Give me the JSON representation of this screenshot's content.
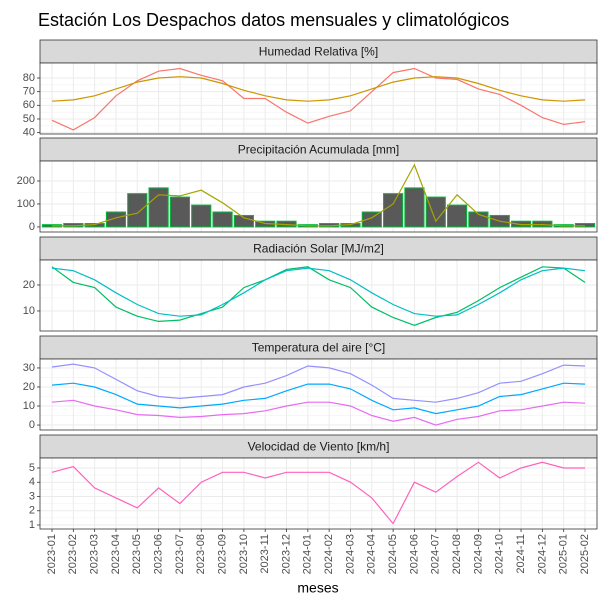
{
  "title": "Estación Los Despachos datos mensuales y climatológicos",
  "x_label": "meses",
  "categories": [
    "2023-01",
    "2023-02",
    "2023-03",
    "2023-04",
    "2023-05",
    "2023-06",
    "2023-07",
    "2023-08",
    "2023-09",
    "2023-10",
    "2023-11",
    "2023-12",
    "2024-01",
    "2024-02",
    "2024-03",
    "2024-04",
    "2024-05",
    "2024-06",
    "2024-07",
    "2024-08",
    "2024-09",
    "2024-10",
    "2024-11",
    "2024-12",
    "2025-01",
    "2025-02"
  ],
  "chart_data": [
    {
      "type": "line",
      "title": "Humedad Relativa [%]",
      "ylim": [
        39,
        91
      ],
      "yticks": [
        40,
        50,
        60,
        70,
        80
      ],
      "grid": true,
      "series": [
        {
          "color": "#F8766D",
          "values": [
            49,
            42,
            51,
            67,
            78,
            85,
            87,
            82,
            78,
            65,
            65,
            55,
            47,
            52,
            56,
            70,
            84,
            87,
            80,
            79,
            72,
            68,
            60,
            51,
            46,
            48
          ]
        },
        {
          "color": "#CD9600",
          "values": [
            63,
            64,
            67,
            72,
            77,
            80,
            81,
            80,
            76,
            71,
            67,
            64,
            63,
            64,
            67,
            72,
            77,
            80,
            81,
            80,
            76,
            71,
            67,
            64,
            63,
            64
          ]
        }
      ]
    },
    {
      "type": "bar",
      "title": "Precipitación Acumulada [mm]",
      "ylim": [
        -22,
        287
      ],
      "yticks": [
        0,
        100,
        200
      ],
      "grid": true,
      "series": [
        {
          "color": "#00BA38",
          "fill": "#595959",
          "values": [
            10,
            15,
            15,
            65,
            145,
            170,
            130,
            95,
            65,
            50,
            25,
            25,
            10,
            15,
            15,
            65,
            145,
            170,
            130,
            95,
            65,
            50,
            25,
            25,
            10,
            15
          ]
        },
        {
          "type": "line",
          "color": "#A3A500",
          "values": [
            5,
            5,
            10,
            40,
            60,
            140,
            135,
            160,
            105,
            40,
            15,
            10,
            5,
            5,
            10,
            40,
            100,
            270,
            25,
            140,
            55,
            25,
            10,
            10,
            5,
            5
          ]
        }
      ]
    },
    {
      "type": "line",
      "title": "Radiación Solar [MJ/m2]",
      "ylim": [
        2.3,
        29.6
      ],
      "yticks": [
        10,
        20
      ],
      "grid": true,
      "series": [
        {
          "color": "#00BE67",
          "values": [
            27,
            21,
            19,
            11.5,
            8,
            6,
            6.5,
            9,
            11.5,
            19,
            22,
            26,
            27,
            22,
            19,
            11.5,
            7.5,
            4.5,
            7.5,
            9.5,
            14,
            19,
            23,
            27,
            26.5,
            21
          ]
        },
        {
          "color": "#00BFC4",
          "values": [
            26.5,
            25.5,
            22,
            17,
            12.5,
            9,
            8,
            8.5,
            12.5,
            17,
            22,
            25.5,
            26.5,
            25.5,
            22,
            17,
            12.5,
            9,
            8,
            8.5,
            12.5,
            17,
            22,
            25.5,
            26.5,
            25.5
          ]
        }
      ]
    },
    {
      "type": "line",
      "title": "Temperatura del aire [°C]",
      "ylim": [
        -2.6,
        34.7
      ],
      "yticks": [
        0,
        10,
        20,
        30
      ],
      "grid": true,
      "series": [
        {
          "color": "#9590FF",
          "values": [
            30.5,
            32,
            30,
            24,
            18,
            15,
            14,
            15,
            16,
            20,
            22,
            26,
            31,
            30,
            27,
            21,
            14,
            13,
            12,
            14,
            17,
            22,
            23,
            27,
            31.5,
            31
          ]
        },
        {
          "color": "#00A9FF",
          "values": [
            21,
            22,
            20,
            16,
            11,
            10,
            9,
            10,
            11,
            13,
            14,
            18,
            21.5,
            21.5,
            19,
            13,
            8,
            9,
            6,
            8,
            10,
            15,
            16,
            19,
            22,
            21.5
          ]
        },
        {
          "color": "#E76BF3",
          "values": [
            12,
            13,
            10,
            8,
            5.5,
            5,
            4,
            4.5,
            5.5,
            6,
            7.5,
            10,
            12,
            12,
            10,
            5,
            2,
            4,
            0,
            3,
            4.5,
            7.5,
            8,
            10,
            12,
            11.5
          ]
        }
      ]
    },
    {
      "type": "line",
      "title": "Velocidad de Viento [km/h]",
      "ylim": [
        0.72,
        5.7
      ],
      "yticks": [
        1,
        2,
        3,
        4,
        5
      ],
      "grid": true,
      "series": [
        {
          "color": "#FF62BC",
          "values": [
            4.7,
            5.1,
            3.6,
            2.9,
            2.2,
            3.6,
            2.5,
            4.0,
            4.7,
            4.7,
            4.3,
            4.7,
            4.7,
            4.7,
            4.0,
            2.9,
            1.1,
            4.0,
            3.3,
            4.4,
            5.4,
            4.3,
            5.0,
            5.4,
            5.0,
            5.0
          ]
        }
      ]
    }
  ]
}
